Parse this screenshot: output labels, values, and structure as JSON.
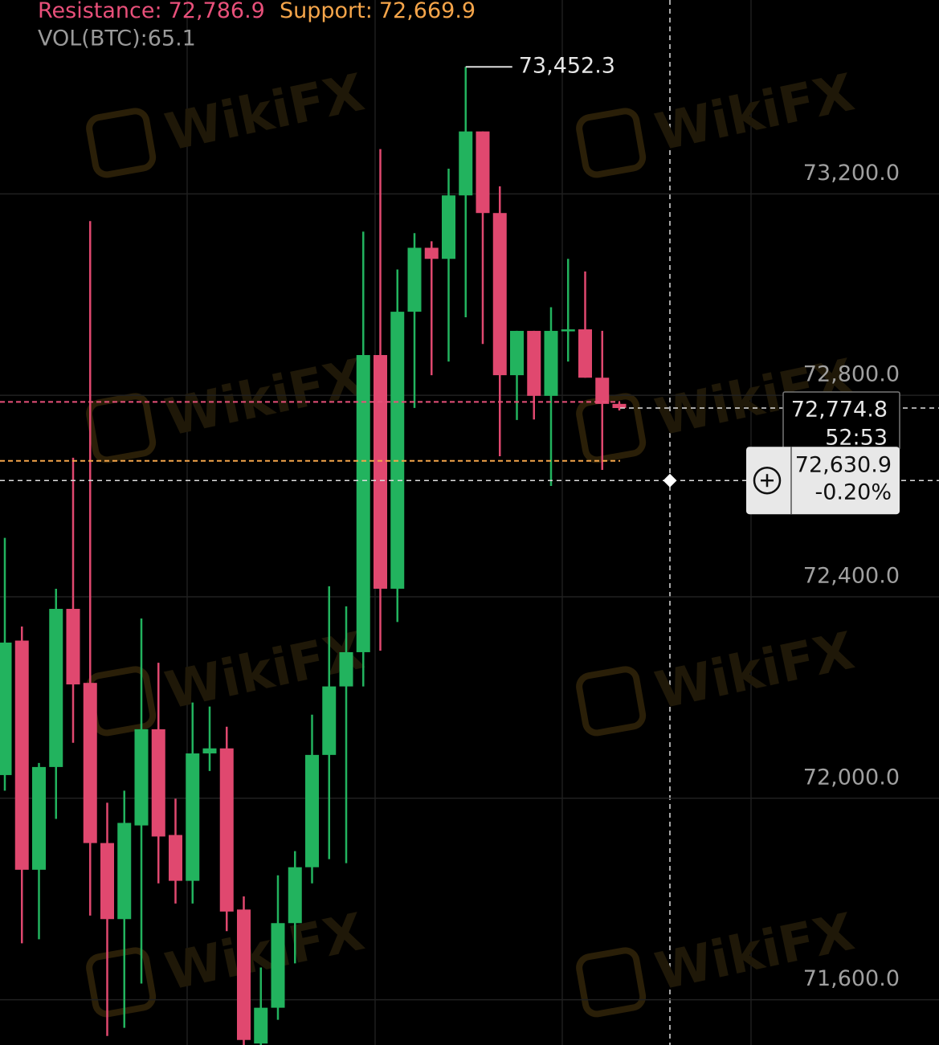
{
  "chart_data": {
    "type": "candlestick",
    "indicator_lines": [
      {
        "name": "Resistance:",
        "value": 72786.9,
        "value_label": "72,786.9",
        "color": "#e8507a"
      },
      {
        "name": "Support:",
        "value": 72669.9,
        "value_label": "72,669.9",
        "color": "#f5a54a"
      }
    ],
    "volume_label": "VOL(BTC):65.1",
    "up_color": "#22b35e",
    "down_color": "#e0486f",
    "ylim": [
      71510,
      73585
    ],
    "yticks": [
      {
        "value": 71600,
        "label": "71,600.0"
      },
      {
        "value": 72000,
        "label": "72,000.0"
      },
      {
        "value": 72400,
        "label": "72,400.0"
      },
      {
        "value": 72800,
        "label": "72,800.0"
      },
      {
        "value": 73200,
        "label": "73,200.0"
      }
    ],
    "grid": true,
    "high_label": "73,452.3",
    "open": [
      72046,
      72313,
      71858,
      72062,
      72376,
      72229,
      71911,
      71760,
      71946,
      72137,
      71927,
      71836,
      72089,
      72099,
      71779,
      71513,
      71584,
      71752,
      71863,
      72086,
      72222,
      72290,
      72880,
      72416,
      72966,
      73093,
      73071,
      73197,
      73324,
      73162,
      72840,
      72928,
      72799,
      72928,
      72931,
      72835,
      72783
    ],
    "high": [
      72517,
      72341,
      72070,
      72416,
      72676,
      73146,
      71991,
      72015,
      72357,
      72269,
      71999,
      72190,
      72182,
      72142,
      71805,
      71664,
      71847,
      71895,
      72166,
      72421,
      72381,
      73125,
      73289,
      73050,
      73122,
      73106,
      73250,
      73452.3,
      73324,
      73215,
      72928,
      72928,
      72975,
      73071,
      73046,
      72928,
      72786
    ],
    "low": [
      72015,
      71712,
      71720,
      71959,
      72110,
      71767,
      71528,
      71544,
      71632,
      71831,
      71791,
      71791,
      72054,
      71736,
      71510,
      71510,
      71560,
      71672,
      71831,
      71879,
      71871,
      72222,
      72293,
      72350,
      72775,
      72840,
      72867,
      72955,
      72902,
      72679,
      72751,
      72752,
      72620,
      72867,
      72835,
      72652,
      72770
    ],
    "close": [
      72309,
      71858,
      72062,
      72376,
      72226,
      71911,
      71760,
      71951,
      72137,
      71924,
      71836,
      72089,
      72099,
      71775,
      71520,
      71584,
      71752,
      71863,
      72086,
      72222,
      72290,
      72880,
      72416,
      72966,
      73093,
      73071,
      73197,
      73324,
      73162,
      72840,
      72928,
      72799,
      72928,
      72931,
      72835,
      72783,
      72774.8
    ],
    "last_price": {
      "value": 72774.8,
      "label": "72,774.8",
      "countdown": "52:53"
    },
    "crosshair": {
      "value": 72630.9,
      "label": "72,630.9",
      "change": "-0.20%"
    },
    "watermark": "WikiFX"
  }
}
